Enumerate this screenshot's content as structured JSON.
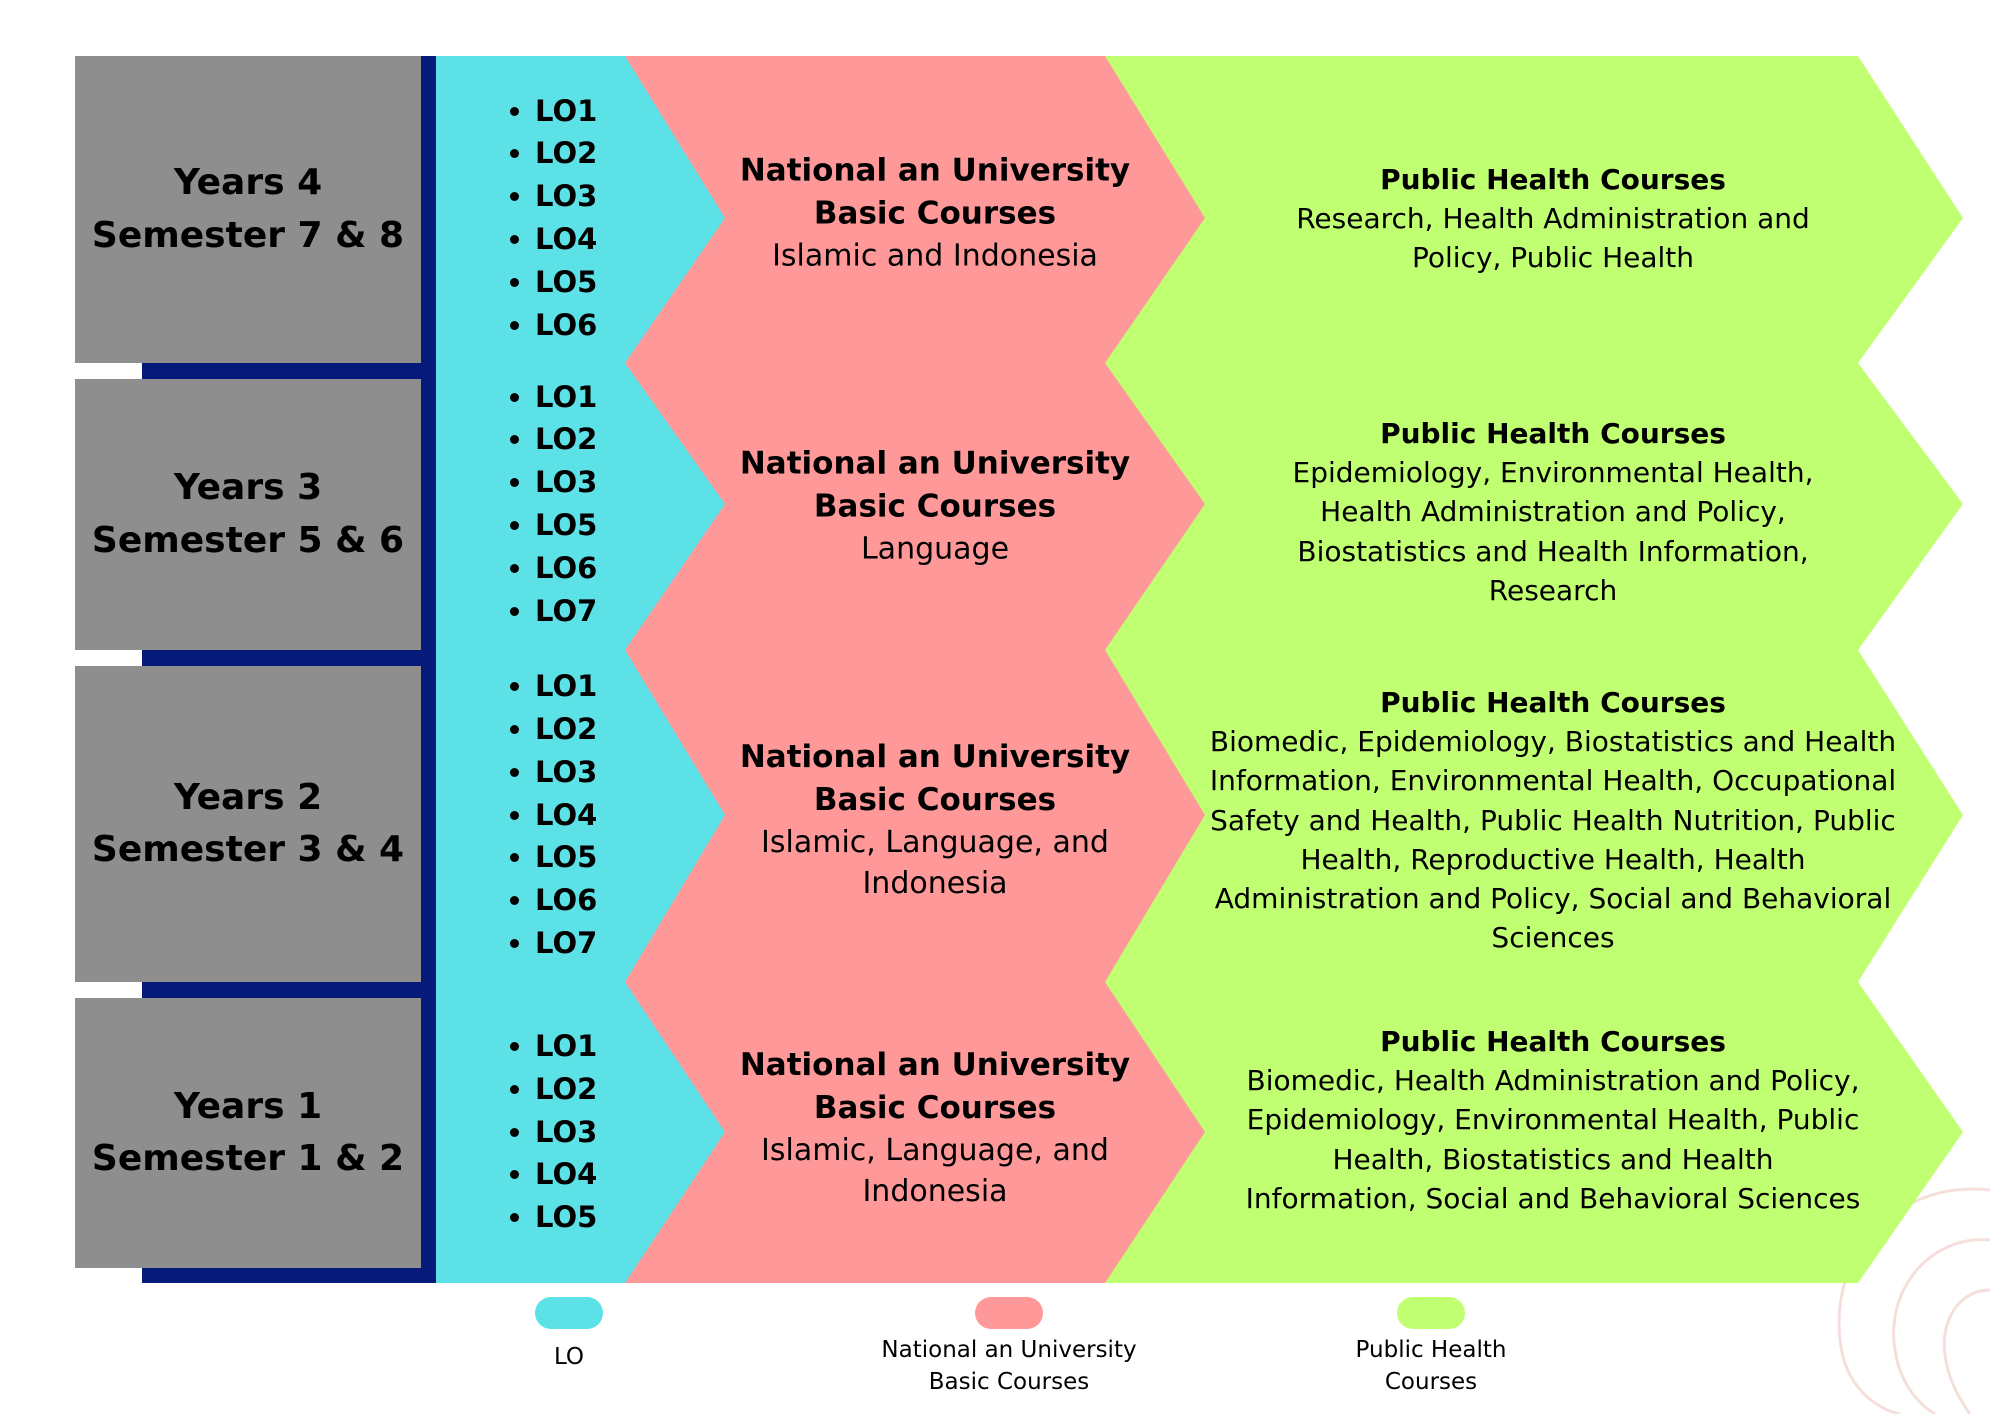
{
  "colors": {
    "year_box": "#8e8e8e",
    "timeline_bar": "#061a7a",
    "lo": "#5ce1e6",
    "national": "#ff9999",
    "public_health": "#c1ff72"
  },
  "rows": [
    {
      "year": "Years 4",
      "semester": "Semester 7 & 8",
      "lo": [
        "LO1",
        "LO2",
        "LO3",
        "LO4",
        "LO5",
        "LO6"
      ],
      "national_title": "National an University Basic Courses",
      "national_text": "Islamic and Indonesia",
      "ph_title": "Public Health Courses",
      "ph_text": "Research, Health Administration and Policy, Public Health"
    },
    {
      "year": "Years 3",
      "semester": "Semester 5 & 6",
      "lo": [
        "LO1",
        "LO2",
        "LO3",
        "LO5",
        "LO6",
        "LO7"
      ],
      "national_title": "National an University Basic Courses",
      "national_text": "Language",
      "ph_title": "Public Health Courses",
      "ph_text": "Epidemiology, Environmental Health, Health Administration and Policy, Biostatistics and Health Information, Research"
    },
    {
      "year": "Years 2",
      "semester": "Semester 3 & 4",
      "lo": [
        "LO1",
        "LO2",
        "LO3",
        "LO4",
        "LO5",
        "LO6",
        "LO7"
      ],
      "national_title": "National an University Basic Courses",
      "national_text": "Islamic, Language, and Indonesia",
      "ph_title": "Public Health Courses",
      "ph_text": "Biomedic, Epidemiology, Biostatistics and Health Information, Environmental Health, Occupational Safety and Health, Public Health Nutrition, Public Health, Reproductive Health, Health Administration and Policy, Social and Behavioral Sciences"
    },
    {
      "year": "Years 1",
      "semester": "Semester 1 & 2",
      "lo": [
        "LO1",
        "LO2",
        "LO3",
        "LO4",
        "LO5"
      ],
      "national_title": "National an University Basic Courses",
      "national_text": "Islamic, Language, and Indonesia",
      "ph_title": "Public Health Courses",
      "ph_text": "Biomedic, Health Administration and Policy, Epidemiology, Environmental Health, Public Health, Biostatistics and Health Information, Social and Behavioral Sciences"
    }
  ],
  "legend": [
    {
      "label": "LO",
      "color": "#5ce1e6"
    },
    {
      "label": "National an University Basic Courses",
      "color": "#ff9999"
    },
    {
      "label": "Public Health Courses",
      "color": "#c1ff72"
    }
  ]
}
